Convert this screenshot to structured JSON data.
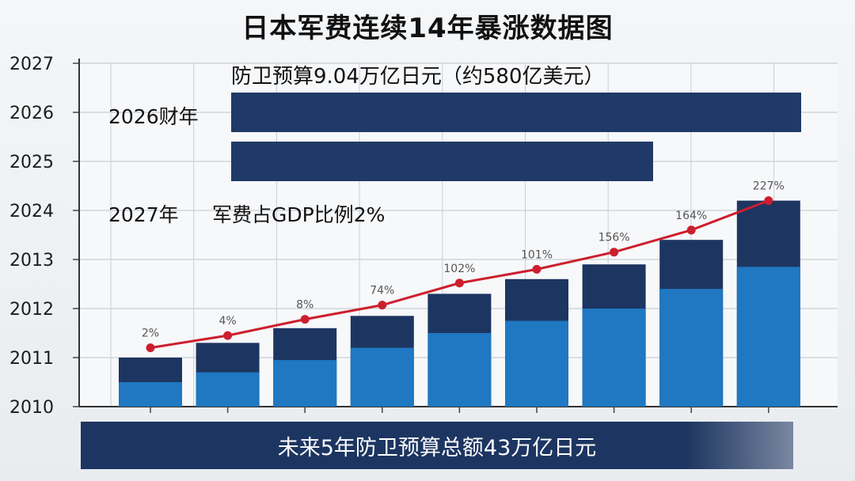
{
  "title": "日本军费连续14年暴涨数据图",
  "annotations": {
    "budget_text": "防卫预算9.04万亿日元（约580亿美元）",
    "fy2026_label": "2026财年",
    "year_2027_label": "2027年",
    "gdp_ratio_label": "军费占GDP比例2%",
    "footer_text": "未来5年防卫预算总额43万亿日元"
  },
  "chart_data": {
    "type": "bar",
    "title": "日本军费连续14年暴涨数据图",
    "y_tick_labels": [
      "2010",
      "2011",
      "2012",
      "2013",
      "2024",
      "2025",
      "2026",
      "2027"
    ],
    "grid": true,
    "bar_series": {
      "total_levels": [
        1.0,
        1.3,
        1.6,
        1.85,
        2.3,
        2.6,
        2.9,
        3.4,
        4.2
      ],
      "light_levels": [
        0.5,
        0.7,
        0.95,
        1.2,
        1.5,
        1.75,
        2.0,
        2.4,
        2.85
      ]
    },
    "line_series": {
      "labels": [
        "2%",
        "4%",
        "8%",
        "74%",
        "102%",
        "101%",
        "156%",
        "164%",
        "227%"
      ],
      "levels": [
        1.2,
        1.45,
        1.78,
        2.07,
        2.52,
        2.8,
        3.15,
        3.6,
        4.2
      ]
    },
    "horizontal_bars": [
      {
        "label": "2026财年",
        "length": 1.0
      },
      {
        "label": "2025",
        "length": 0.74
      }
    ],
    "colors": {
      "bar_dark": "#1d3561",
      "bar_light": "#1f78c1",
      "line": "#cc1f2d",
      "hbar": "#1f3a66",
      "grid": "#c9ced4"
    }
  }
}
